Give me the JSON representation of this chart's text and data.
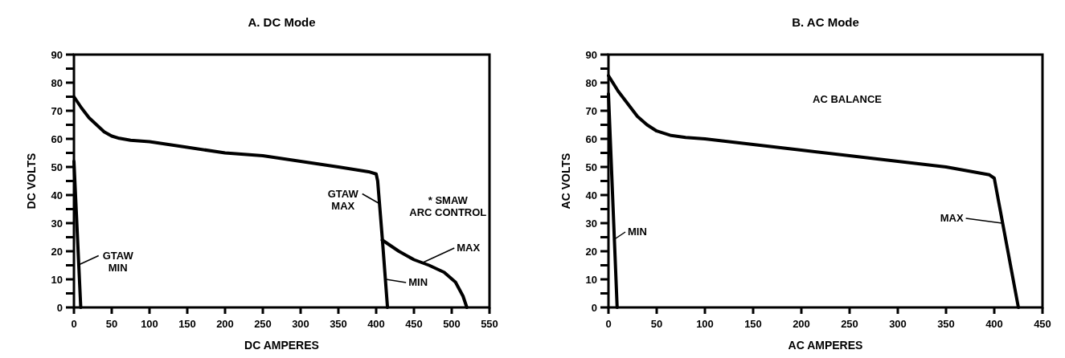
{
  "chart_data": [
    {
      "type": "line",
      "title": "A.  DC Mode",
      "xlabel": "DC  AMPERES",
      "ylabel": "DC  VOLTS",
      "xlim": [
        0,
        550
      ],
      "ylim": [
        0,
        90
      ],
      "xticks": [
        0,
        50,
        100,
        150,
        200,
        250,
        300,
        350,
        400,
        450,
        500,
        550
      ],
      "yticks": [
        0,
        {
          "value": 5,
          "label": null
        },
        10,
        {
          "value": 15,
          "label": null
        },
        20,
        {
          "value": 25,
          "label": null
        },
        30,
        {
          "value": 35,
          "label": null
        },
        40,
        {
          "value": 45,
          "label": null
        },
        50,
        {
          "value": 55,
          "label": null
        },
        60,
        {
          "value": 65,
          "label": null
        },
        70,
        {
          "value": 75,
          "label": null
        },
        80,
        {
          "value": 85,
          "label": null
        },
        90
      ],
      "grid": false,
      "marker": "none",
      "line_style": "solid",
      "series": [
        {
          "color": "#000000",
          "x": [
            0,
            10,
            20,
            30,
            40,
            50,
            60,
            75,
            100,
            150,
            200,
            250,
            300,
            350,
            390,
            400,
            402,
            408,
            415
          ],
          "values": [
            75,
            71,
            67.5,
            65,
            62.5,
            61,
            60.2,
            59.5,
            59,
            57,
            55,
            54,
            52,
            50,
            48.3,
            47.5,
            45,
            25,
            0
          ]
        },
        {
          "color": "#000000",
          "x": [
            0,
            9
          ],
          "values": [
            52,
            0
          ]
        },
        {
          "color": "#000000",
          "x": [
            408,
            430,
            450,
            470,
            490,
            505,
            515,
            520
          ],
          "values": [
            24,
            20,
            17,
            15,
            12.5,
            9,
            4,
            0
          ]
        }
      ],
      "annotations": [
        {
          "text": "GTAW\nMIN",
          "x": 5,
          "y": 15
        },
        {
          "text": "GTAW\nMAX",
          "x": 404,
          "y": 37
        },
        "* SMAW\nARC CONTROL",
        {
          "text": "MAX",
          "x": 462,
          "y": 16
        },
        {
          "text": "MIN",
          "x": 413,
          "y": 10
        }
      ]
    },
    {
      "type": "line",
      "title": "B.  AC Mode",
      "xlabel": "AC  AMPERES",
      "ylabel": "AC  VOLTS",
      "xlim": [
        0,
        450
      ],
      "ylim": [
        0,
        90
      ],
      "xticks": [
        0,
        50,
        100,
        150,
        200,
        250,
        300,
        350,
        400,
        450
      ],
      "yticks": [
        0,
        {
          "value": 5,
          "label": null
        },
        10,
        {
          "value": 15,
          "label": null
        },
        20,
        {
          "value": 25,
          "label": null
        },
        30,
        {
          "value": 35,
          "label": null
        },
        40,
        {
          "value": 45,
          "label": null
        },
        50,
        {
          "value": 55,
          "label": null
        },
        60,
        {
          "value": 65,
          "label": null
        },
        70,
        {
          "value": 75,
          "label": null
        },
        80,
        {
          "value": 85,
          "label": null
        },
        90
      ],
      "grid": false,
      "marker": "none",
      "line_style": "solid",
      "series": [
        {
          "color": "#000000",
          "x": [
            0,
            10,
            20,
            30,
            40,
            50,
            65,
            80,
            100,
            150,
            200,
            250,
            300,
            350,
            395,
            400,
            425
          ],
          "values": [
            82.5,
            77,
            72.5,
            68,
            65,
            62.8,
            61.2,
            60.5,
            60,
            58,
            56,
            54,
            52,
            50,
            47.2,
            46,
            0
          ]
        },
        {
          "color": "#000000",
          "x": [
            0,
            9
          ],
          "values": [
            76,
            0
          ]
        }
      ],
      "annotations": [
        "AC  BALANCE",
        {
          "text": "MIN",
          "x": 5,
          "y": 24
        },
        {
          "text": "MAX",
          "x": 408,
          "y": 30
        }
      ]
    }
  ]
}
